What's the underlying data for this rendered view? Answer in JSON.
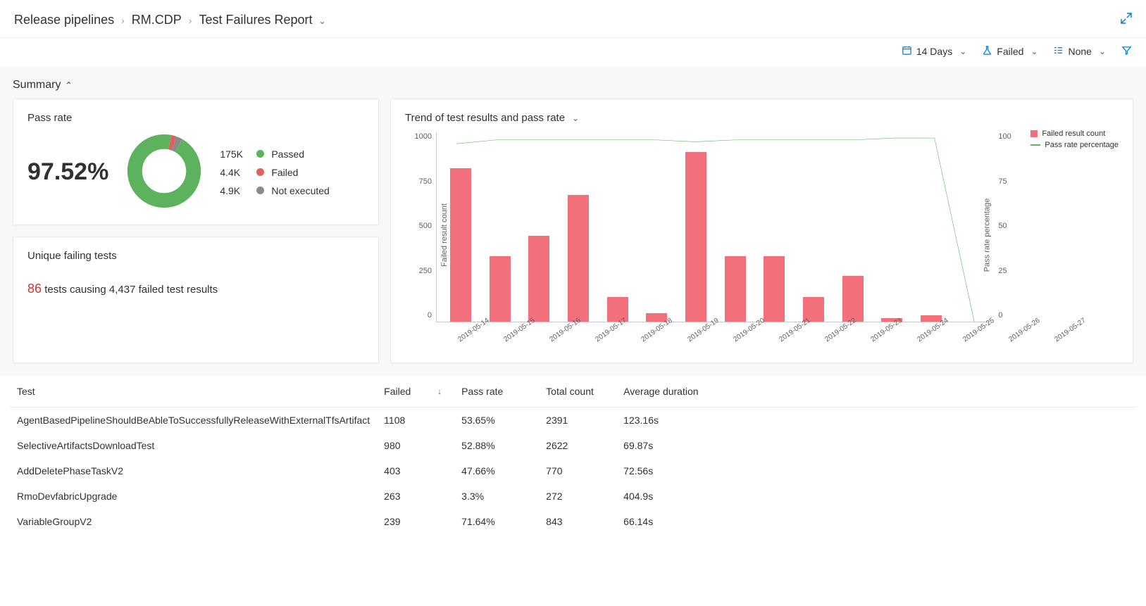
{
  "breadcrumb": {
    "items": [
      "Release pipelines",
      "RM.CDP",
      "Test Failures Report"
    ]
  },
  "filters": {
    "days": "14 Days",
    "outcome": "Failed",
    "group": "None"
  },
  "summary": {
    "title": "Summary"
  },
  "passrate": {
    "title": "Pass rate",
    "value": "97.52%",
    "donut": {
      "passed_color": "#5db35d",
      "failed_color": "#e06060",
      "notexec_color": "#8a8a8a",
      "passed_pct": 94.9,
      "failed_pct": 2.4,
      "notexec_pct": 2.7
    },
    "legend": [
      {
        "count": "175K",
        "label": "Passed",
        "color": "#5db35d"
      },
      {
        "count": "4.4K",
        "label": "Failed",
        "color": "#e06060"
      },
      {
        "count": "4.9K",
        "label": "Not executed",
        "color": "#8a8a8a"
      }
    ]
  },
  "unique": {
    "title": "Unique failing tests",
    "count": "86",
    "rest": " tests causing 4,437 failed test results"
  },
  "trend": {
    "title": "Trend of test results and pass rate",
    "left_axis_label": "Failed result count",
    "right_axis_label": "Pass rate percentage",
    "y_left_ticks": [
      "1000",
      "750",
      "500",
      "250",
      "0"
    ],
    "y_right_ticks": [
      "100",
      "75",
      "50",
      "25",
      "0"
    ],
    "y_left_max": 1000,
    "y_right_max": 100,
    "x_labels": [
      "2019-05-14",
      "2019-05-15",
      "2019-05-16",
      "2019-05-17",
      "2019-05-18",
      "2019-05-19",
      "2019-05-20",
      "2019-05-21",
      "2019-05-22",
      "2019-05-23",
      "2019-05-24",
      "2019-05-25",
      "2019-05-26",
      "2019-05-27"
    ],
    "bar_values": [
      810,
      345,
      455,
      670,
      130,
      45,
      895,
      345,
      345,
      130,
      240,
      18,
      35,
      0
    ],
    "bar_color": "#f1707b",
    "line_values": [
      94,
      96,
      96,
      96,
      96,
      96,
      95,
      96,
      96,
      96,
      96,
      97,
      97,
      0
    ],
    "line_color": "#5cb85c",
    "legend": {
      "bar_label": "Failed result count",
      "line_label": "Pass rate percentage"
    },
    "background": "#ffffff",
    "axis_color": "#c8c8c8",
    "label_fontsize": 11
  },
  "table": {
    "columns": [
      "Test",
      "Failed",
      "Pass rate",
      "Total count",
      "Average duration"
    ],
    "sort_col": 1,
    "sort_dir": "desc",
    "rows": [
      [
        "AgentBasedPipelineShouldBeAbleToSuccessfullyReleaseWithExternalTfsArtifact",
        "1108",
        "53.65%",
        "2391",
        "123.16s"
      ],
      [
        "SelectiveArtifactsDownloadTest",
        "980",
        "52.88%",
        "2622",
        "69.87s"
      ],
      [
        "AddDeletePhaseTaskV2",
        "403",
        "47.66%",
        "770",
        "72.56s"
      ],
      [
        "RmoDevfabricUpgrade",
        "263",
        "3.3%",
        "272",
        "404.9s"
      ],
      [
        "VariableGroupV2",
        "239",
        "71.64%",
        "843",
        "66.14s"
      ]
    ]
  },
  "colors": {
    "accent": "#0078d4",
    "error": "#d13438"
  }
}
